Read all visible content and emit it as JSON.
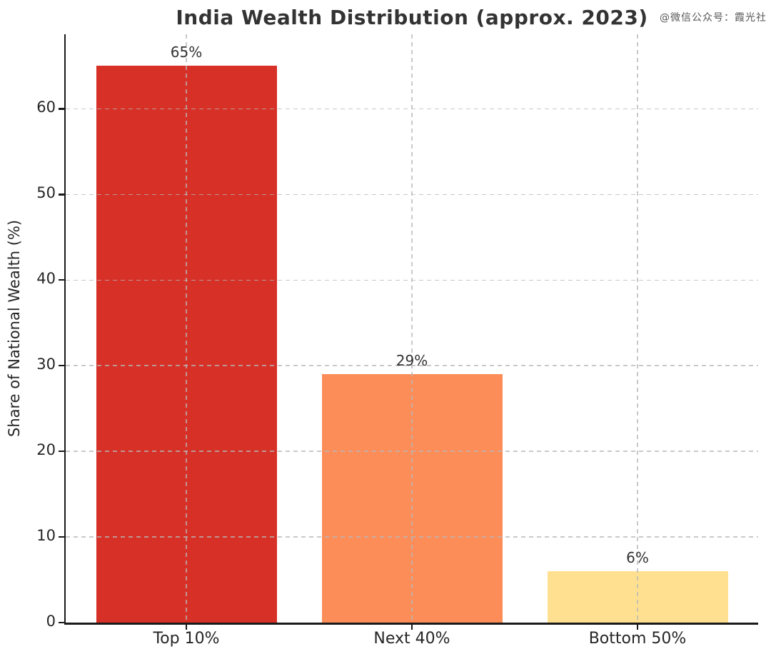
{
  "watermark": "@微信公众号：霞光社",
  "chart_data": {
    "type": "bar",
    "title": "India Wealth Distribution (approx. 2023)",
    "xlabel": "",
    "ylabel": "Share of National Wealth (%)",
    "categories": [
      "Top 10%",
      "Next 40%",
      "Bottom 50%"
    ],
    "values": [
      65,
      29,
      6
    ],
    "value_labels": [
      "65%",
      "29%",
      "6%"
    ],
    "bar_colors": [
      "#d73027",
      "#fc8d59",
      "#fee090"
    ],
    "bar_names": [
      "bar-top-10",
      "bar-next-40",
      "bar-bottom-50"
    ],
    "ylim": [
      0,
      68.7
    ],
    "yticks": [
      0,
      10,
      20,
      30,
      40,
      50,
      60
    ],
    "grid": {
      "style": "dashed",
      "color": "#c9c9c9",
      "horizontal_at_yticks": true,
      "vertical_at_bar_centers": true,
      "drawn_above_bars": true
    },
    "legend": null,
    "background_color": "#ffffff",
    "spine_color": "#1a1a1a",
    "title_color": "#333333",
    "tick_label_color": "#262626"
  }
}
